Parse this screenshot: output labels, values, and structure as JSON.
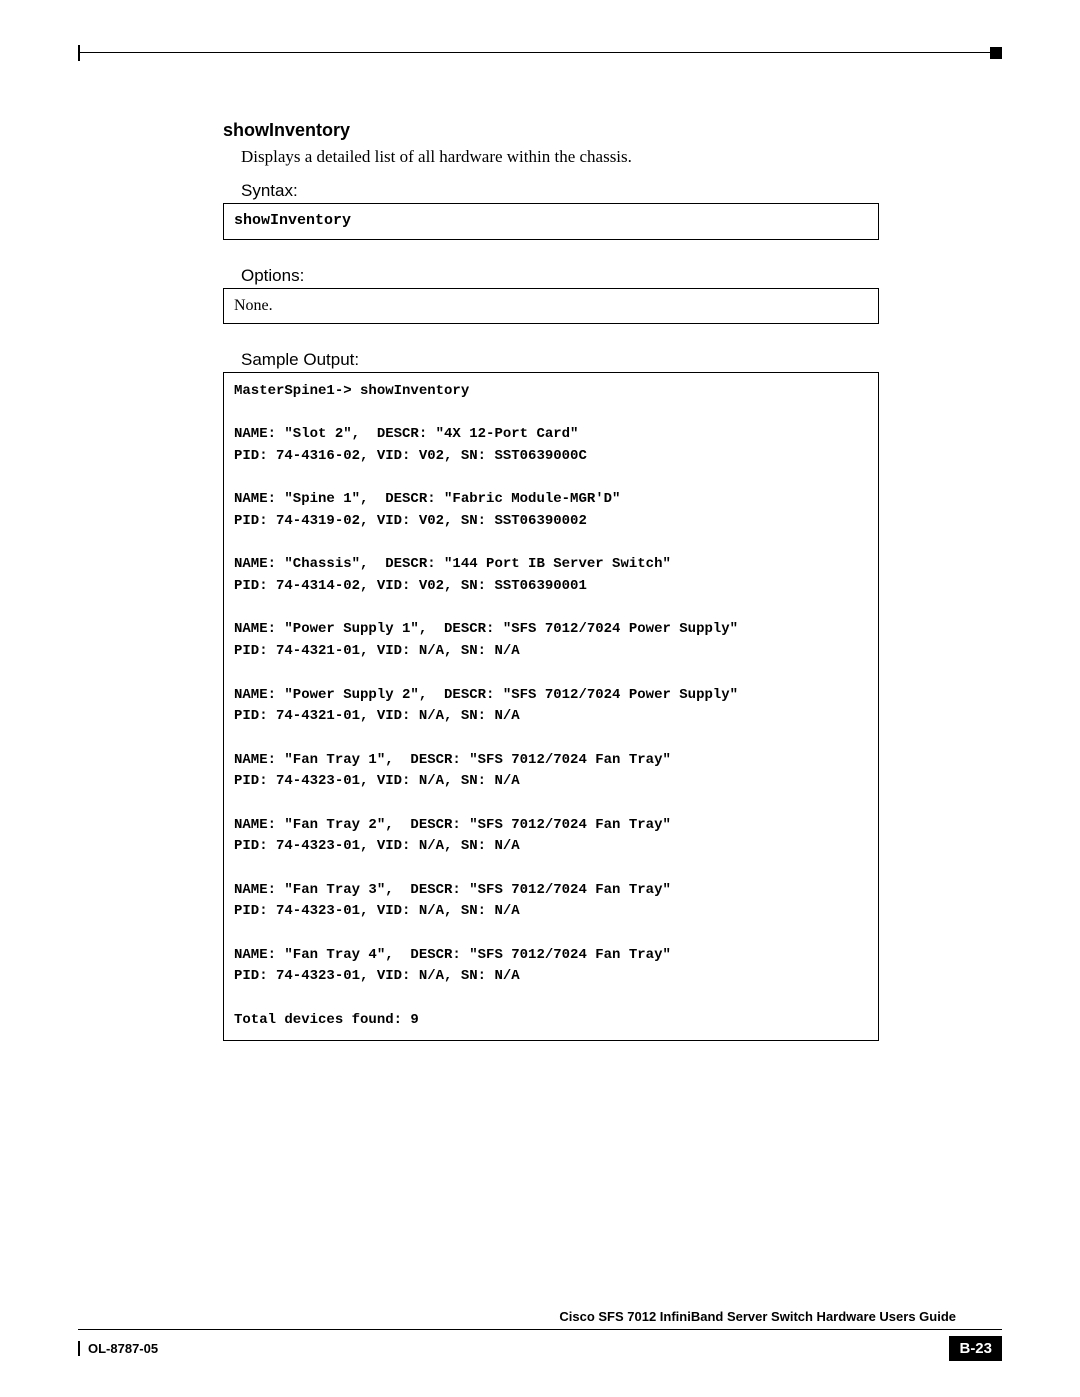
{
  "command": {
    "title": "showInventory",
    "description": "Displays a detailed list of all hardware within the chassis."
  },
  "syntax": {
    "label": "Syntax:",
    "text": "showInventory"
  },
  "options": {
    "label": "Options:",
    "text": "None."
  },
  "sample": {
    "label": "Sample Output:",
    "text": "MasterSpine1-> showInventory\n\nNAME: \"Slot 2\",  DESCR: \"4X 12-Port Card\"\nPID: 74-4316-02, VID: V02, SN: SST0639000C\n\nNAME: \"Spine 1\",  DESCR: \"Fabric Module-MGR'D\"\nPID: 74-4319-02, VID: V02, SN: SST06390002\n\nNAME: \"Chassis\",  DESCR: \"144 Port IB Server Switch\"\nPID: 74-4314-02, VID: V02, SN: SST06390001\n\nNAME: \"Power Supply 1\",  DESCR: \"SFS 7012/7024 Power Supply\"\nPID: 74-4321-01, VID: N/A, SN: N/A\n\nNAME: \"Power Supply 2\",  DESCR: \"SFS 7012/7024 Power Supply\"\nPID: 74-4321-01, VID: N/A, SN: N/A\n\nNAME: \"Fan Tray 1\",  DESCR: \"SFS 7012/7024 Fan Tray\"\nPID: 74-4323-01, VID: N/A, SN: N/A\n\nNAME: \"Fan Tray 2\",  DESCR: \"SFS 7012/7024 Fan Tray\"\nPID: 74-4323-01, VID: N/A, SN: N/A\n\nNAME: \"Fan Tray 3\",  DESCR: \"SFS 7012/7024 Fan Tray\"\nPID: 74-4323-01, VID: N/A, SN: N/A\n\nNAME: \"Fan Tray 4\",  DESCR: \"SFS 7012/7024 Fan Tray\"\nPID: 74-4323-01, VID: N/A, SN: N/A\n\nTotal devices found: 9"
  },
  "footer": {
    "guide": "Cisco SFS 7012 InfiniBand Server Switch Hardware Users Guide",
    "docnum": "OL-8787-05",
    "page": "B-23"
  }
}
